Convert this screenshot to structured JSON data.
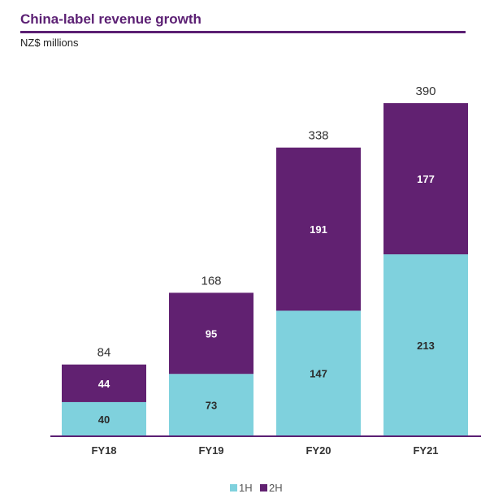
{
  "chart_data": {
    "type": "bar",
    "stacked": true,
    "title": "China-label revenue growth",
    "subtitle": "NZ$ millions",
    "categories": [
      "FY18",
      "FY19",
      "FY20",
      "FY21"
    ],
    "series": [
      {
        "name": "1H",
        "color": "#7fd1dd",
        "values": [
          40,
          73,
          147,
          213
        ]
      },
      {
        "name": "2H",
        "color": "#612171",
        "values": [
          44,
          95,
          191,
          177
        ]
      }
    ],
    "totals": [
      84,
      168,
      338,
      390
    ],
    "ylim": [
      0,
      390
    ],
    "legend_position": "bottom-center"
  }
}
